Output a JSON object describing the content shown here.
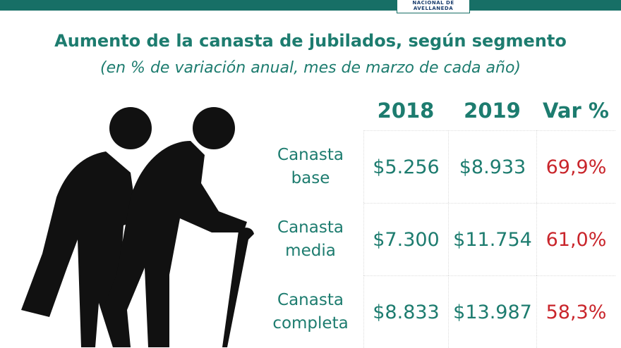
{
  "header": {
    "logo": [
      "NACIONAL DE",
      "AVELLANEDA"
    ],
    "title": "Aumento de la canasta de jubilados, según segmento",
    "subtitle": "(en % de variación anual, mes de marzo de cada año)"
  },
  "table": {
    "columns": [
      "2018",
      "2019",
      "Var %"
    ],
    "rows": [
      {
        "label": "Canasta base",
        "cells": [
          "$5.256",
          "$8.933",
          "69,9%"
        ]
      },
      {
        "label": "Canasta media",
        "cells": [
          "$7.300",
          "$11.754",
          "61,0%"
        ]
      },
      {
        "label": "Canasta completa",
        "cells": [
          "$8.833",
          "$13.987",
          "58,3%"
        ]
      }
    ]
  }
}
